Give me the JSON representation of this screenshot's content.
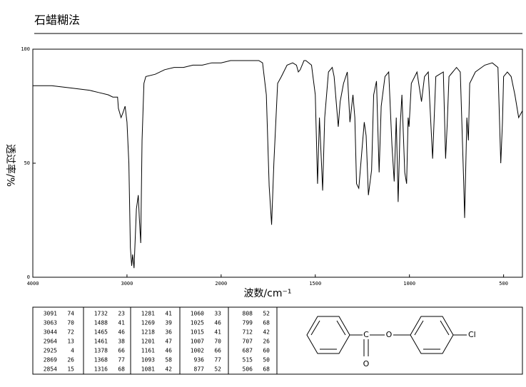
{
  "title": "石蜡糊法",
  "chart_data": {
    "type": "line",
    "x_label": "波数/cm⁻¹",
    "y_label": "透过率/%",
    "xlim": [
      4000,
      400
    ],
    "x_scale_break": 2000,
    "ylim": [
      0,
      100
    ],
    "xticks": [
      4000,
      3000,
      2000,
      1500,
      1000,
      500
    ],
    "yticks": [
      0,
      50,
      100
    ],
    "color": "#000000",
    "x": [
      4000,
      3800,
      3600,
      3400,
      3300,
      3200,
      3150,
      3100,
      3091,
      3063,
      3044,
      3020,
      3000,
      2980,
      2964,
      2950,
      2940,
      2925,
      2900,
      2880,
      2869,
      2854,
      2840,
      2820,
      2800,
      2700,
      2600,
      2500,
      2400,
      2300,
      2200,
      2100,
      2000,
      1950,
      1900,
      1850,
      1800,
      1780,
      1760,
      1745,
      1732,
      1720,
      1700,
      1680,
      1650,
      1620,
      1600,
      1590,
      1580,
      1560,
      1550,
      1520,
      1500,
      1488,
      1478,
      1465,
      1461,
      1450,
      1430,
      1410,
      1400,
      1390,
      1378,
      1368,
      1350,
      1330,
      1316,
      1300,
      1290,
      1281,
      1269,
      1260,
      1240,
      1230,
      1218,
      1201,
      1190,
      1175,
      1161,
      1150,
      1130,
      1110,
      1093,
      1081,
      1070,
      1060,
      1050,
      1040,
      1025,
      1015,
      1007,
      1002,
      990,
      960,
      936,
      920,
      900,
      877,
      860,
      840,
      820,
      808,
      799,
      790,
      770,
      750,
      730,
      712,
      707,
      695,
      687,
      680,
      650,
      600,
      560,
      530,
      515,
      506,
      500,
      480,
      460,
      440,
      420,
      400
    ],
    "values": [
      84,
      84,
      83,
      82,
      81,
      80,
      79,
      79,
      74,
      70,
      72,
      75,
      68,
      50,
      13,
      5,
      10,
      4,
      30,
      36,
      26,
      15,
      60,
      85,
      88,
      89,
      91,
      92,
      92,
      93,
      93,
      94,
      94,
      95,
      95,
      95,
      95,
      94,
      80,
      40,
      23,
      50,
      85,
      88,
      93,
      94,
      93,
      90,
      91,
      95,
      95,
      93,
      80,
      41,
      70,
      46,
      38,
      70,
      90,
      92,
      88,
      78,
      66,
      77,
      85,
      90,
      68,
      80,
      70,
      41,
      39,
      48,
      68,
      62,
      36,
      47,
      80,
      86,
      46,
      75,
      88,
      90,
      58,
      42,
      70,
      33,
      65,
      80,
      46,
      41,
      70,
      66,
      85,
      90,
      77,
      88,
      90,
      52,
      88,
      89,
      90,
      52,
      68,
      88,
      90,
      92,
      90,
      42,
      26,
      70,
      60,
      85,
      90,
      93,
      94,
      92,
      50,
      68,
      88,
      90,
      88,
      80,
      70,
      73
    ]
  },
  "peak_table": [
    [
      [
        3091,
        74
      ],
      [
        3063,
        70
      ],
      [
        3044,
        72
      ],
      [
        2964,
        13
      ],
      [
        2925,
        4
      ],
      [
        2869,
        26
      ],
      [
        2854,
        15
      ]
    ],
    [
      [
        1732,
        23
      ],
      [
        1488,
        41
      ],
      [
        1465,
        46
      ],
      [
        1461,
        38
      ],
      [
        1378,
        66
      ],
      [
        1368,
        77
      ],
      [
        1316,
        68
      ]
    ],
    [
      [
        1281,
        41
      ],
      [
        1269,
        39
      ],
      [
        1218,
        36
      ],
      [
        1201,
        47
      ],
      [
        1161,
        46
      ],
      [
        1093,
        58
      ],
      [
        1081,
        42
      ]
    ],
    [
      [
        1060,
        33
      ],
      [
        1025,
        46
      ],
      [
        1015,
        41
      ],
      [
        1007,
        70
      ],
      [
        1002,
        66
      ],
      [
        936,
        77
      ],
      [
        877,
        52
      ]
    ],
    [
      [
        808,
        52
      ],
      [
        799,
        68
      ],
      [
        712,
        42
      ],
      [
        707,
        26
      ],
      [
        687,
        60
      ],
      [
        515,
        50
      ],
      [
        506,
        68
      ]
    ]
  ],
  "structure": {
    "carbon": "C",
    "carbonyl_oxygen": "O",
    "ester_oxygen": "O",
    "chlorine": "Cl"
  }
}
